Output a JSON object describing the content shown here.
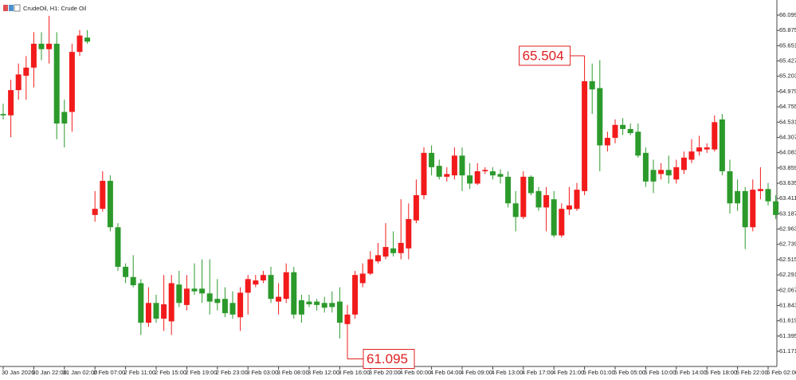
{
  "chart_data": {
    "type": "candlestick",
    "title": "CrudeOil, H1:  Crude Oil",
    "categories": [
      "30 Jan 2026",
      null,
      null,
      null,
      "30 Jan 22:00",
      null,
      null,
      null,
      "31 Jan 02:00",
      null,
      null,
      null,
      "2 Feb 07:00",
      null,
      null,
      null,
      "2 Feb 11:00",
      null,
      null,
      null,
      "2 Feb 15:00",
      null,
      null,
      null,
      "2 Feb 19:00",
      null,
      null,
      null,
      "2 Feb 23:00",
      null,
      null,
      null,
      "3 Feb 03:00",
      null,
      null,
      null,
      "3 Feb 08:00",
      null,
      null,
      null,
      "3 Feb 12:00",
      null,
      null,
      null,
      "3 Feb 16:00",
      null,
      null,
      null,
      "3 Feb 20:00",
      null,
      null,
      null,
      "4 Feb 00:00",
      null,
      null,
      null,
      "4 Feb 04:00",
      null,
      null,
      null,
      "4 Feb 09:00",
      null,
      null,
      null,
      "4 Feb 13:00",
      null,
      null,
      null,
      "4 Feb 17:00",
      null,
      null,
      null,
      "4 Feb 21:00",
      null,
      null,
      null,
      "5 Feb 01:00",
      null,
      null,
      null,
      "5 Feb 05:00",
      null,
      null,
      null,
      "5 Feb 10:00",
      null,
      null,
      null,
      "5 Feb 14:00",
      null,
      null,
      null,
      "5 Feb 18:00",
      null,
      null,
      null,
      "5 Feb 22:00",
      null,
      null,
      null,
      "6 Feb 02:00",
      null
    ],
    "open": [
      64.65,
      64.63,
      65.0,
      65.21,
      65.33,
      65.68,
      65.6,
      65.68,
      64.68,
      64.68,
      65.56,
      65.77,
      63.17,
      63.26,
      63.67,
      62.99,
      62.41,
      62.26,
      62.17,
      61.59,
      61.88,
      61.65,
      61.61,
      62.15,
      61.85,
      62.09,
      62.09,
      62.02,
      61.94,
      61.94,
      61.88,
      61.67,
      62.03,
      62.15,
      62.21,
      62.29,
      61.9,
      61.94,
      62.33,
      61.92,
      61.9,
      61.9,
      61.88,
      61.88,
      61.9,
      61.57,
      61.71,
      62.17,
      62.31,
      62.49,
      62.56,
      62.68,
      62.61,
      62.68,
      63.09,
      63.46,
      64.08,
      63.89,
      63.73,
      63.75,
      64.04,
      63.75,
      63.63,
      63.81,
      63.81,
      63.77,
      63.73,
      63.34,
      63.14,
      63.73,
      63.52,
      63.28,
      63.4,
      62.87,
      63.25,
      63.26,
      63.52,
      65.13,
      65.03,
      64.19,
      64.3,
      64.49,
      64.43,
      64.39,
      64.08,
      63.83,
      63.77,
      63.83,
      63.69,
      63.83,
      63.98,
      64.1,
      64.13,
      64.13,
      64.57,
      63.81,
      63.52,
      63.52,
      62.99,
      63.52,
      63.55,
      63.37
    ],
    "high": [
      64.8,
      65.15,
      65.39,
      65.5,
      65.85,
      65.85,
      66.09,
      65.85,
      64.86,
      65.68,
      65.88,
      65.88,
      63.52,
      63.81,
      63.75,
      63.05,
      62.46,
      62.58,
      62.23,
      62.11,
      62.0,
      62.29,
      62.29,
      62.35,
      62.29,
      62.46,
      62.52,
      62.52,
      62.23,
      62.11,
      62.05,
      62.11,
      62.29,
      62.29,
      62.35,
      62.41,
      62.17,
      62.46,
      62.41,
      62.0,
      62.0,
      61.94,
      61.97,
      62.05,
      62.11,
      61.85,
      62.35,
      62.46,
      62.64,
      62.76,
      63.05,
      62.93,
      63.4,
      63.34,
      63.69,
      64.16,
      64.19,
      63.98,
      63.87,
      64.16,
      64.16,
      63.93,
      63.93,
      63.87,
      63.87,
      63.84,
      63.81,
      63.52,
      63.81,
      63.75,
      63.58,
      63.58,
      63.52,
      63.34,
      63.58,
      63.64,
      65.504,
      65.39,
      65.44,
      64.39,
      64.57,
      64.59,
      64.51,
      64.51,
      64.16,
      63.98,
      63.93,
      64.04,
      63.98,
      64.1,
      64.28,
      64.33,
      64.22,
      64.63,
      64.65,
      63.98,
      63.69,
      63.58,
      63.69,
      63.87,
      63.64,
      63.46
    ],
    "low": [
      64.57,
      64.31,
      64.86,
      64.86,
      65.04,
      65.44,
      65.39,
      64.28,
      64.16,
      64.39,
      65.5,
      65.68,
      63.07,
      63.22,
      62.93,
      62.35,
      62.17,
      62.11,
      61.41,
      61.53,
      61.59,
      61.47,
      61.41,
      61.82,
      61.77,
      62.0,
      61.88,
      61.71,
      61.77,
      61.67,
      61.65,
      61.47,
      61.71,
      62.11,
      62.17,
      61.88,
      61.71,
      61.88,
      61.65,
      61.59,
      61.82,
      61.77,
      61.74,
      61.74,
      61.36,
      61.095,
      61.65,
      62.11,
      62.29,
      62.46,
      62.52,
      62.56,
      62.52,
      62.52,
      63.05,
      63.4,
      63.75,
      63.69,
      63.66,
      63.69,
      63.52,
      63.55,
      63.61,
      63.77,
      63.69,
      63.63,
      63.28,
      62.93,
      63.11,
      63.46,
      63.23,
      62.93,
      62.84,
      62.84,
      63.17,
      63.23,
      63.46,
      64.65,
      63.81,
      64.1,
      64.22,
      64.34,
      64.34,
      64.01,
      63.58,
      63.49,
      63.69,
      63.63,
      63.63,
      63.77,
      63.93,
      64.04,
      64.08,
      64.1,
      63.75,
      63.19,
      63.23,
      62.67,
      62.93,
      63.4,
      63.31,
      63.11
    ],
    "close": [
      64.63,
      65.0,
      65.23,
      65.33,
      65.68,
      65.6,
      65.68,
      64.51,
      64.51,
      65.56,
      65.8,
      65.71,
      63.26,
      63.67,
      62.99,
      62.41,
      62.26,
      62.14,
      61.59,
      61.88,
      61.65,
      61.86,
      62.17,
      61.88,
      62.09,
      62.05,
      62.02,
      61.9,
      61.88,
      61.73,
      61.71,
      62.03,
      62.23,
      62.21,
      62.29,
      61.94,
      61.97,
      62.33,
      61.71,
      61.71,
      61.86,
      61.85,
      61.81,
      61.82,
      61.59,
      61.71,
      62.29,
      62.31,
      62.52,
      62.58,
      62.7,
      62.61,
      62.76,
      63.11,
      63.46,
      64.08,
      63.87,
      63.73,
      63.77,
      64.04,
      63.75,
      63.63,
      63.81,
      63.83,
      63.75,
      63.73,
      63.34,
      63.14,
      63.73,
      63.49,
      63.28,
      63.46,
      62.87,
      63.26,
      63.31,
      63.54,
      65.13,
      65.01,
      64.19,
      64.3,
      64.49,
      64.43,
      64.37,
      64.04,
      63.66,
      63.66,
      63.83,
      63.75,
      63.87,
      64.01,
      64.1,
      64.16,
      64.16,
      64.53,
      63.81,
      63.34,
      63.34,
      62.99,
      63.54,
      63.55,
      63.37,
      63.17
    ],
    "up_color": "#f21b1b",
    "down_color": "#2b9a2b",
    "ylim": [
      60.949,
      66.321
    ],
    "yticks": [
      66.099,
      65.875,
      65.651,
      65.427,
      65.203,
      64.979,
      64.755,
      64.531,
      64.307,
      64.083,
      63.859,
      63.635,
      63.411,
      63.187,
      62.963,
      62.739,
      62.515,
      62.291,
      62.067,
      61.843,
      61.619,
      61.395,
      61.171
    ],
    "annotations": [
      65.504,
      61.095
    ]
  }
}
